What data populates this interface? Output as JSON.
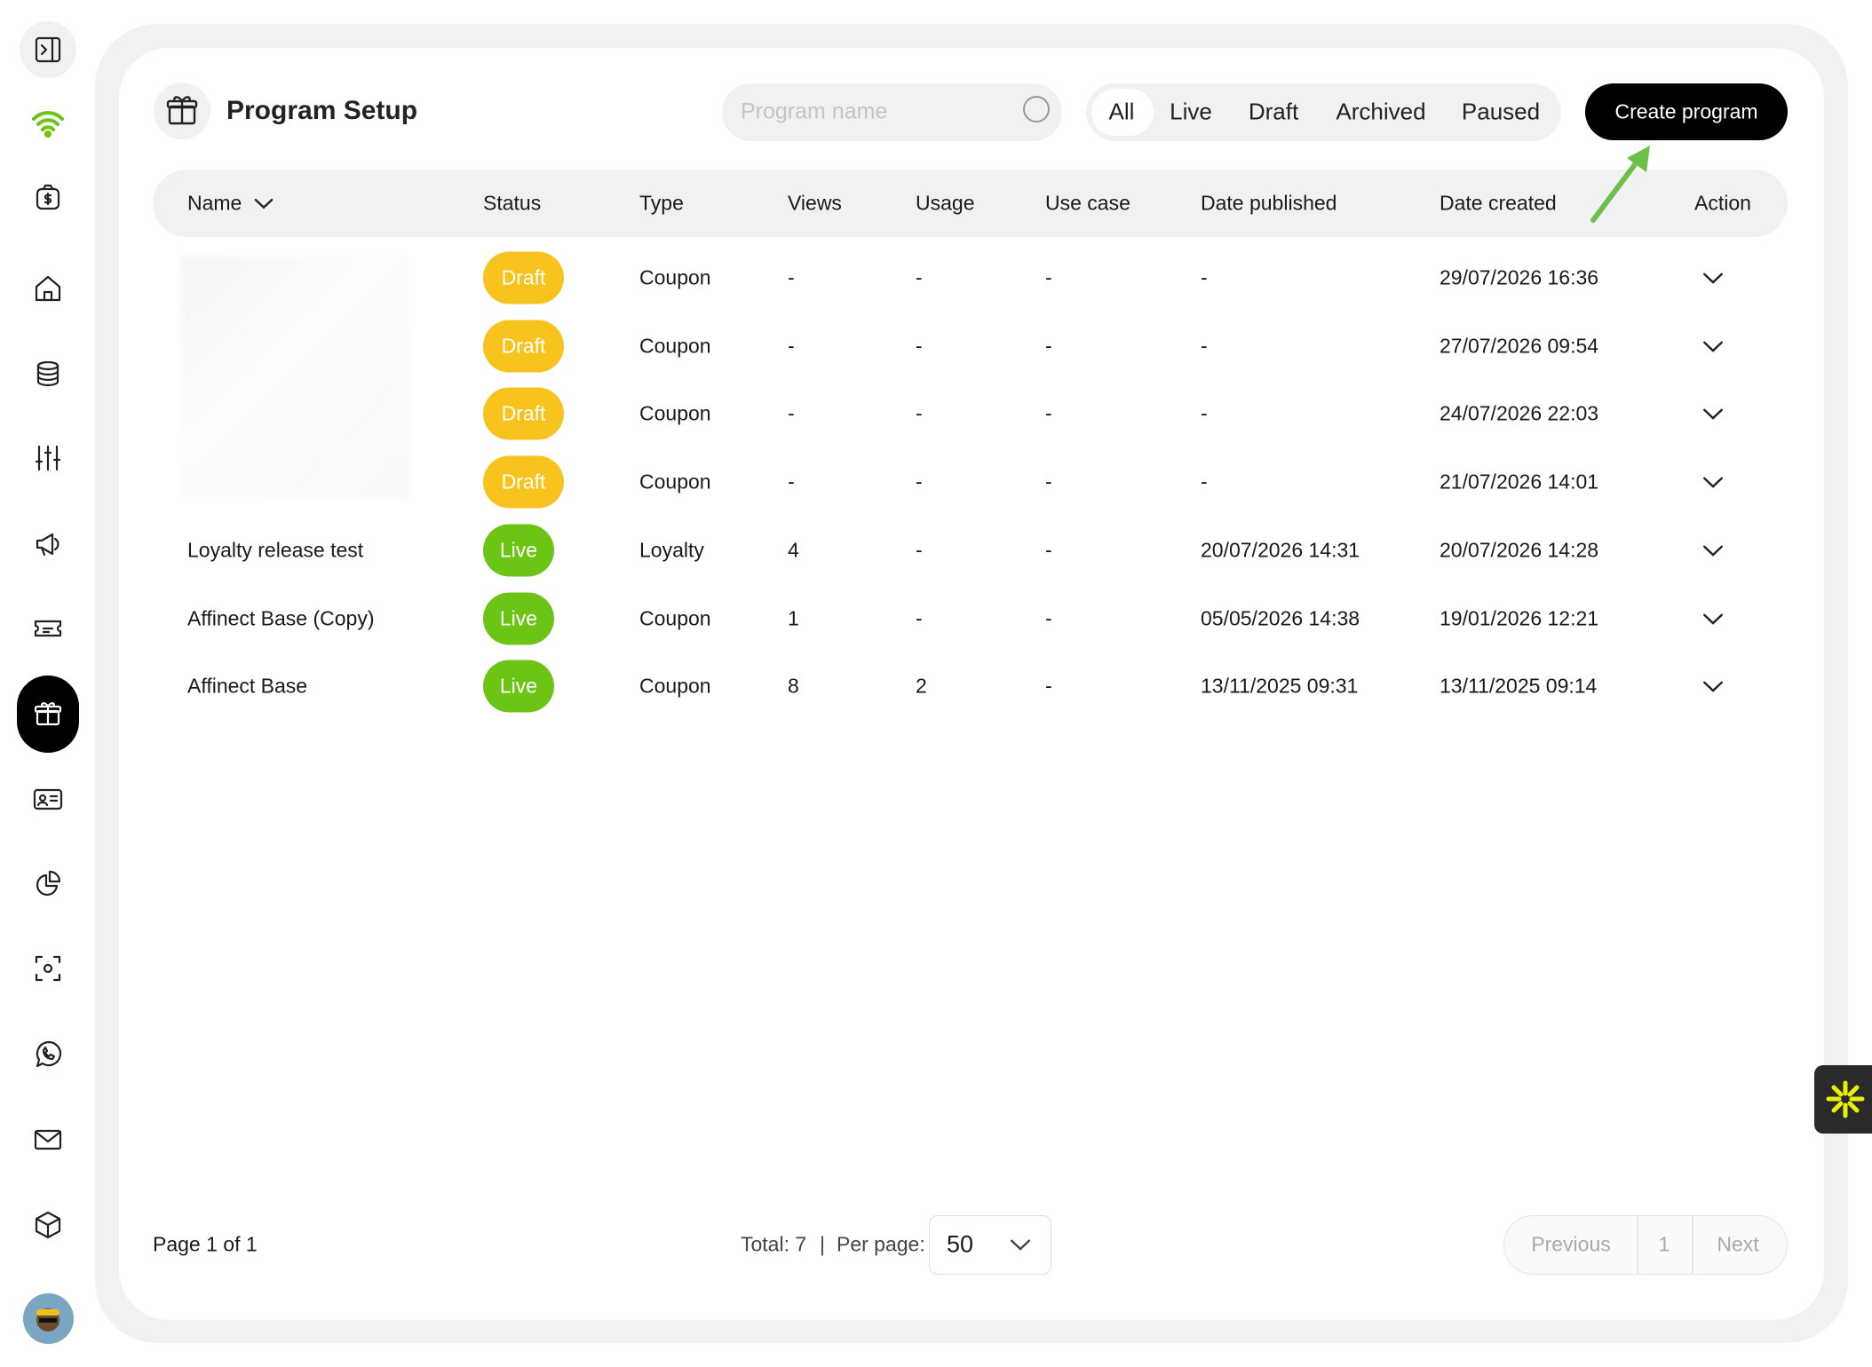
{
  "header": {
    "title": "Program Setup",
    "search_placeholder": "Program name",
    "filters": [
      "All",
      "Live",
      "Draft",
      "Archived",
      "Paused"
    ],
    "create_button": "Create program"
  },
  "table": {
    "columns": [
      "Name",
      "Status",
      "Type",
      "Views",
      "Usage",
      "Use case",
      "Date published",
      "Date created",
      "Action"
    ],
    "rows": [
      [
        null,
        "Draft",
        "Coupon",
        "-",
        "-",
        "-",
        "-",
        "29/07/2026 16:36"
      ],
      [
        null,
        "Draft",
        "Coupon",
        "-",
        "-",
        "-",
        "-",
        "27/07/2026 09:54"
      ],
      [
        null,
        "Draft",
        "Coupon",
        "-",
        "-",
        "-",
        "-",
        "24/07/2026 22:03"
      ],
      [
        null,
        "Draft",
        "Coupon",
        "-",
        "-",
        "-",
        "-",
        "21/07/2026 14:01"
      ],
      [
        "Loyalty release test",
        "Live",
        "Loyalty",
        "4",
        "-",
        "-",
        "20/07/2026 14:31",
        "20/07/2026 14:28"
      ],
      [
        "Affinect Base (Copy)",
        "Live",
        "Coupon",
        "1",
        "-",
        "-",
        "05/05/2026 14:38",
        "19/01/2026 12:21"
      ],
      [
        "Affinect Base",
        "Live",
        "Coupon",
        "8",
        "2",
        "-",
        "13/11/2025 09:31",
        "13/11/2025 09:14"
      ]
    ]
  },
  "footer": {
    "page_info": "Page 1 of 1",
    "total": "Total: 7",
    "separator": "|",
    "per_page_label": "Per page:",
    "per_page": "50",
    "previous": "Previous",
    "current_page": "1",
    "next": "Next"
  }
}
